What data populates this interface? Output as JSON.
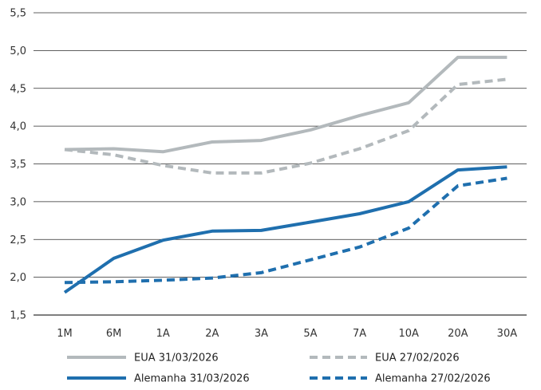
{
  "chart_data": {
    "type": "line",
    "categories": [
      "1M",
      "6M",
      "1A",
      "2A",
      "3A",
      "5A",
      "7A",
      "10A",
      "20A",
      "30A"
    ],
    "ylim": [
      1.5,
      5.5
    ],
    "yticks": [
      "1,5",
      "2,0",
      "2,5",
      "3,0",
      "3,5",
      "4,0",
      "4,5",
      "5,0",
      "5,5"
    ],
    "grid": true,
    "legend_position": "bottom",
    "series": [
      {
        "name": "EUA  31/03/2026",
        "values": [
          3.69,
          3.7,
          3.66,
          3.79,
          3.81,
          3.95,
          4.14,
          4.31,
          4.91,
          4.91
        ],
        "color": "#b3b9bc",
        "style": "solid"
      },
      {
        "name": "EUA  27/02/2026",
        "values": [
          3.69,
          3.62,
          3.48,
          3.38,
          3.38,
          3.51,
          3.7,
          3.94,
          4.55,
          4.62
        ],
        "color": "#b3b9bc",
        "style": "dashed"
      },
      {
        "name": "Alemanha 31/03/2026",
        "values": [
          1.8,
          2.25,
          2.49,
          2.61,
          2.62,
          2.73,
          2.84,
          3.0,
          3.42,
          3.46
        ],
        "color": "#1f6fae",
        "style": "solid"
      },
      {
        "name": "Alemanha 27/02/2026",
        "values": [
          1.93,
          1.94,
          1.96,
          1.99,
          2.06,
          2.23,
          2.4,
          2.65,
          3.21,
          3.31
        ],
        "color": "#1f6fae",
        "style": "dashed"
      }
    ]
  }
}
